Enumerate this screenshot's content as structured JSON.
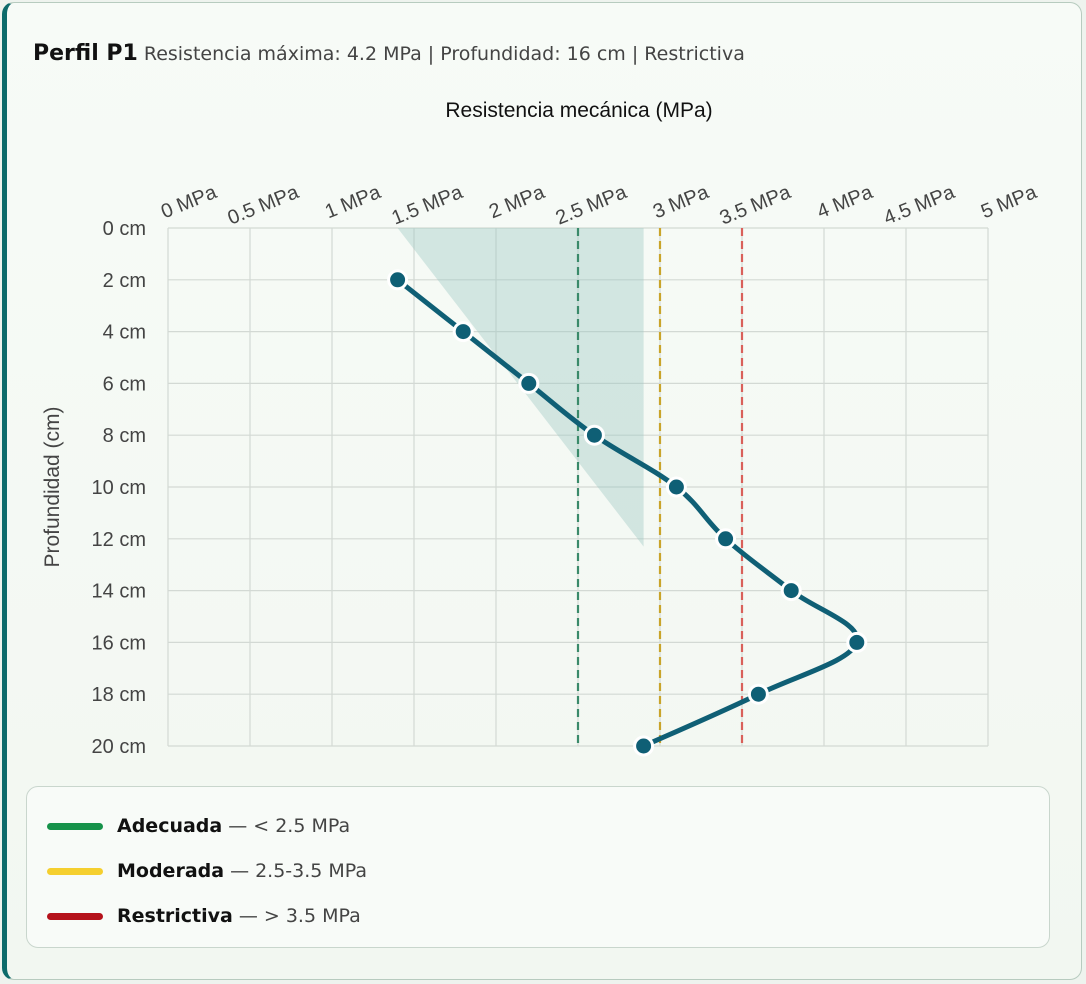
{
  "header": {
    "title": "Perfil P1",
    "subtitle": "Resistencia máxima: 4.2 MPa | Profundidad: 16 cm | Restrictiva"
  },
  "chart_data": {
    "type": "line",
    "xlabel": "Resistencia mecánica (MPa)",
    "ylabel": "Profundidad (cm)",
    "xlim": [
      0,
      5
    ],
    "ylim": [
      0,
      20
    ],
    "x_ticks": [
      "0 MPa",
      "0.5 MPa",
      "1 MPa",
      "1.5 MPa",
      "2 MPa",
      "2.5 MPa",
      "3 MPa",
      "3.5 MPa",
      "4 MPa",
      "4.5 MPa",
      "5 MPa"
    ],
    "y_ticks": [
      "0 cm",
      "2 cm",
      "4 cm",
      "6 cm",
      "8 cm",
      "10 cm",
      "12 cm",
      "14 cm",
      "16 cm",
      "18 cm",
      "20 cm"
    ],
    "grid": true,
    "series": [
      {
        "depth": [
          2,
          4,
          6,
          8,
          10,
          12,
          14,
          16,
          18,
          20
        ],
        "resistance": [
          1.4,
          1.8,
          2.2,
          2.6,
          3.1,
          3.4,
          3.8,
          4.2,
          3.6,
          2.9
        ],
        "color": "#0f5f75"
      }
    ],
    "reference_band": {
      "points": [
        [
          1.4,
          0
        ],
        [
          2.9,
          0
        ],
        [
          2.9,
          12.3
        ],
        [
          1.4,
          0
        ]
      ],
      "color": "#9ec9c4"
    },
    "thresholds": [
      {
        "value": 2.5,
        "color": "#3a8a6a"
      },
      {
        "value": 3.0,
        "color": "#c9a42a"
      },
      {
        "value": 3.5,
        "color": "#d9605a"
      }
    ]
  },
  "legend": [
    {
      "name": "Adecuada",
      "range": "< 2.5 MPa",
      "color": "#16924a"
    },
    {
      "name": "Moderada",
      "range": "2.5-3.5 MPa",
      "color": "#f5cf2f"
    },
    {
      "name": "Restrictiva",
      "range": "> 3.5 MPa",
      "color": "#b5121b"
    }
  ]
}
